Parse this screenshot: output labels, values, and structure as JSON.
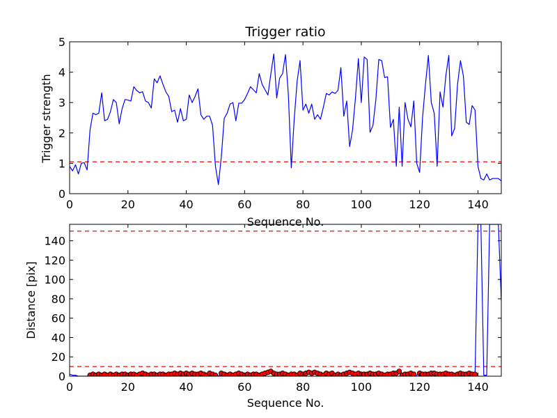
{
  "chart_data": [
    {
      "type": "line",
      "title": "Trigger ratio",
      "xlabel": "Sequence No.",
      "ylabel": "Trigger strength",
      "xlim": [
        0,
        148
      ],
      "ylim": [
        0,
        5
      ],
      "xticks": [
        0,
        20,
        40,
        60,
        80,
        100,
        120,
        140
      ],
      "yticks": [
        0,
        1,
        2,
        3,
        4,
        5
      ],
      "threshold": 1.05,
      "line_color": "#0000ff",
      "threshold_color": "#ff0000",
      "series": [
        {
          "values": [
            0.9,
            0.75,
            0.95,
            0.65,
            1.0,
            1.02,
            0.78,
            2.1,
            2.65,
            2.6,
            2.65,
            3.32,
            2.4,
            2.45,
            2.7,
            3.1,
            3.0,
            2.3,
            2.8,
            3.1,
            3.08,
            3.05,
            3.52,
            3.4,
            3.32,
            3.36,
            3.05,
            3.0,
            2.82,
            3.78,
            3.65,
            3.88,
            3.6,
            3.35,
            3.2,
            2.7,
            2.75,
            2.35,
            2.8,
            2.4,
            2.45,
            3.25,
            3.0,
            3.2,
            3.45,
            2.6,
            2.45,
            2.55,
            2.55,
            2.25,
            0.9,
            0.3,
            1.2,
            2.48,
            2.65,
            2.95,
            3.0,
            2.4,
            2.98,
            2.98,
            3.1,
            3.3,
            3.52,
            3.42,
            3.32,
            3.95,
            3.6,
            3.42,
            3.25,
            3.95,
            4.6,
            3.15,
            3.8,
            3.95,
            4.58,
            3.25,
            0.85,
            2.45,
            3.7,
            4.38,
            2.75,
            2.95,
            2.65,
            2.95,
            2.45,
            2.6,
            2.45,
            2.85,
            3.3,
            3.25,
            3.35,
            3.3,
            3.4,
            4.15,
            2.55,
            3.05,
            1.55,
            2.1,
            3.15,
            4.45,
            3.0,
            4.5,
            4.42,
            2.02,
            2.25,
            3.1,
            4.42,
            4.38,
            3.82,
            3.85,
            2.18,
            2.45,
            0.9,
            2.85,
            0.9,
            3.0,
            2.45,
            2.2,
            3.05,
            1.0,
            0.7,
            2.5,
            3.6,
            4.55,
            3.0,
            2.65,
            0.9,
            3.35,
            2.85,
            3.9,
            4.55,
            1.9,
            2.15,
            3.6,
            4.38,
            3.88,
            2.35,
            2.28,
            2.9,
            2.75,
            0.9,
            0.5,
            0.45,
            0.65,
            0.45,
            0.5,
            0.5,
            0.5,
            0.42
          ]
        }
      ]
    },
    {
      "type": "line",
      "title": "",
      "xlabel": "Sequence No.",
      "ylabel": "Distance [pix]",
      "xlim": [
        0,
        148
      ],
      "ylim": [
        0,
        157
      ],
      "xticks": [
        0,
        20,
        40,
        60,
        80,
        100,
        120,
        140
      ],
      "yticks": [
        0,
        20,
        40,
        60,
        80,
        100,
        120,
        140
      ],
      "thresholds": [
        150,
        10
      ],
      "line_color": "#0000ff",
      "threshold_color": "#ff0000",
      "marker_color": "#ff0000",
      "series": [
        {
          "values": [
            2,
            1,
            1,
            0,
            0,
            0,
            0,
            1,
            2,
            1,
            2,
            1,
            2,
            1,
            2,
            1,
            2,
            1,
            2,
            2,
            1,
            2,
            2,
            1,
            2,
            3,
            2,
            1,
            2,
            2,
            1,
            2,
            2,
            1,
            2,
            2,
            3,
            2,
            3,
            2,
            3,
            2,
            3,
            2,
            2,
            3,
            2,
            1,
            3,
            2,
            1,
            0,
            3,
            2,
            1,
            2,
            1,
            2,
            3,
            2,
            1,
            2,
            1,
            2,
            2,
            1,
            2,
            3,
            4,
            5,
            3,
            2,
            2,
            3,
            2,
            1,
            2,
            2,
            1,
            3,
            2,
            3,
            4,
            3,
            4,
            3,
            2,
            1,
            3,
            2,
            3,
            1,
            2,
            1,
            2,
            3,
            4,
            3,
            2,
            3,
            2,
            2,
            2,
            3,
            2,
            2,
            3,
            2,
            1,
            2,
            2,
            3,
            3,
            5,
            1,
            2,
            2,
            3,
            2,
            1,
            3,
            2,
            2,
            2,
            3,
            3,
            2,
            2,
            2,
            3,
            2,
            2,
            1,
            2,
            3,
            2,
            2,
            3,
            2,
            2,
            157,
            157,
            1,
            1,
            157,
            157,
            157,
            157,
            78
          ],
          "marker_indices": [
            7,
            8,
            9,
            10,
            11,
            12,
            13,
            14,
            15,
            16,
            17,
            18,
            19,
            20,
            21,
            22,
            23,
            24,
            25,
            26,
            27,
            28,
            29,
            30,
            31,
            32,
            33,
            34,
            35,
            36,
            37,
            38,
            39,
            40,
            41,
            42,
            43,
            44,
            45,
            46,
            47,
            48,
            49,
            50,
            52,
            53,
            54,
            55,
            56,
            57,
            58,
            59,
            60,
            61,
            62,
            63,
            64,
            65,
            66,
            67,
            68,
            69,
            70,
            71,
            72,
            73,
            74,
            75,
            76,
            77,
            78,
            79,
            80,
            81,
            82,
            83,
            84,
            85,
            86,
            87,
            88,
            89,
            90,
            91,
            92,
            93,
            94,
            95,
            96,
            97,
            98,
            99,
            100,
            101,
            102,
            103,
            104,
            105,
            106,
            107,
            108,
            109,
            110,
            111,
            112,
            113,
            114,
            115,
            116,
            117,
            118,
            120,
            121,
            122,
            123,
            124,
            125,
            126,
            127,
            128,
            129,
            130,
            131,
            132,
            133,
            134,
            135,
            136,
            137,
            138,
            139
          ]
        }
      ]
    }
  ]
}
